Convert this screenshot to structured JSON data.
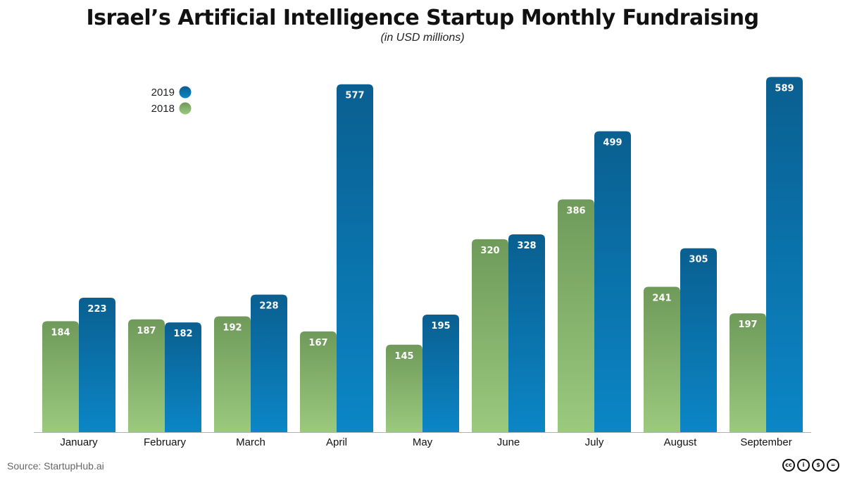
{
  "header": {
    "title": "Israel’s Artificial Intelligence Startup Monthly Fundraising",
    "subtitle": "(in USD millions)"
  },
  "footer": {
    "source": "Source: StartupHub.ai",
    "license_icons": [
      "cc-icon",
      "by-icon",
      "nc-icon",
      "nd-icon"
    ],
    "license_glyphs": [
      "cc",
      "i",
      "$",
      "="
    ]
  },
  "colors": {
    "s2019_top": "#0a5f90",
    "s2019_bottom": "#0b86c6",
    "s2018_top": "#6f9a5a",
    "s2018_bottom": "#9bc97e",
    "axis": "#b0b0b0"
  },
  "chart_data": {
    "type": "bar",
    "title": "Israel’s Artificial Intelligence Startup Monthly Fundraising",
    "subtitle": "(in USD millions)",
    "categories": [
      "January",
      "February",
      "March",
      "April",
      "May",
      "June",
      "July",
      "August",
      "September"
    ],
    "series": [
      {
        "name": "2018",
        "values": [
          184,
          187,
          192,
          167,
          145,
          320,
          386,
          241,
          197
        ]
      },
      {
        "name": "2019",
        "values": [
          223,
          182,
          228,
          577,
          195,
          328,
          499,
          305,
          589
        ]
      }
    ],
    "legend": [
      "2019",
      "2018"
    ],
    "legend_position": "top-left",
    "grid": false,
    "ylim": [
      0,
      600
    ],
    "xlabel": "",
    "ylabel": ""
  }
}
